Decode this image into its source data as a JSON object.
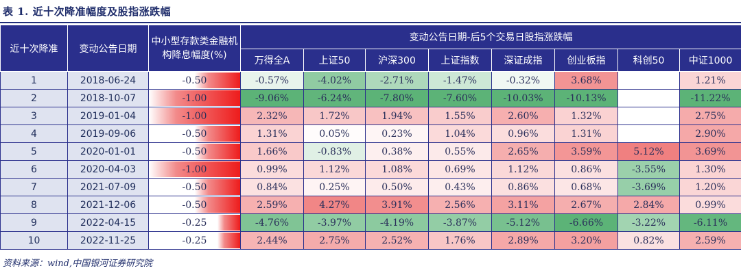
{
  "title": "表 1. 近十次降准幅度及股指涨跌幅",
  "header": {
    "col_index": "近十次降准",
    "col_date": "变动公告日期",
    "col_rate": "中小型存款类金融机构降息幅度(%)",
    "group_label": "变动公告日期-后5个交易日股指涨跌幅",
    "indices": [
      "万得全A",
      "上证50",
      "沪深300",
      "上证指数",
      "深证成指",
      "创业板指",
      "科创50",
      "中证1000"
    ]
  },
  "rows": [
    {
      "n": "1",
      "date": "2018-06-24",
      "rate": "-0.50",
      "rate_level": 0.5,
      "vals": [
        "-0.57%",
        "-4.02%",
        "-2.71%",
        "-1.47%",
        "-0.32%",
        "3.68%",
        "",
        "1.21%"
      ]
    },
    {
      "n": "2",
      "date": "2018-10-07",
      "rate": "-1.00",
      "rate_level": 1.0,
      "vals": [
        "-9.06%",
        "-6.24%",
        "-7.80%",
        "-7.60%",
        "-10.03%",
        "-10.13%",
        "",
        "-11.22%"
      ]
    },
    {
      "n": "3",
      "date": "2019-01-04",
      "rate": "-1.00",
      "rate_level": 1.0,
      "vals": [
        "2.32%",
        "1.72%",
        "1.94%",
        "1.55%",
        "2.60%",
        "1.32%",
        "",
        "2.75%"
      ]
    },
    {
      "n": "4",
      "date": "2019-09-06",
      "rate": "-0.50",
      "rate_level": 0.5,
      "vals": [
        "1.31%",
        "0.05%",
        "0.23%",
        "1.04%",
        "0.96%",
        "1.31%",
        "",
        "2.90%"
      ]
    },
    {
      "n": "5",
      "date": "2020-01-01",
      "rate": "-0.50",
      "rate_level": 0.5,
      "vals": [
        "1.66%",
        "-0.83%",
        "0.38%",
        "0.55%",
        "2.65%",
        "3.59%",
        "5.12%",
        "3.69%"
      ]
    },
    {
      "n": "6",
      "date": "2020-04-03",
      "rate": "-1.00",
      "rate_level": 1.0,
      "vals": [
        "0.99%",
        "1.12%",
        "1.08%",
        "0.69%",
        "1.12%",
        "0.86%",
        "-3.55%",
        "1.30%"
      ]
    },
    {
      "n": "7",
      "date": "2021-07-09",
      "rate": "-0.50",
      "rate_level": 0.5,
      "vals": [
        "0.84%",
        "0.25%",
        "0.50%",
        "0.43%",
        "0.86%",
        "0.68%",
        "-3.69%",
        "1.20%"
      ]
    },
    {
      "n": "8",
      "date": "2021-12-06",
      "rate": "-0.50",
      "rate_level": 0.5,
      "vals": [
        "2.59%",
        "4.27%",
        "3.91%",
        "2.56%",
        "3.11%",
        "2.67%",
        "2.84%",
        "0.99%"
      ]
    },
    {
      "n": "9",
      "date": "2022-04-15",
      "rate": "-0.25",
      "rate_level": 0.25,
      "vals": [
        "-4.76%",
        "-3.97%",
        "-4.19%",
        "-3.87%",
        "-5.12%",
        "-6.66%",
        "-3.22%",
        "-6.11%"
      ]
    },
    {
      "n": "10",
      "date": "2022-11-25",
      "rate": "-0.25",
      "rate_level": 0.25,
      "vals": [
        "2.44%",
        "2.75%",
        "2.52%",
        "1.76%",
        "2.89%",
        "3.20%",
        "0.82%",
        "2.59%"
      ]
    }
  ],
  "colors": {
    "header": "#2a2f8c",
    "pos_max": "#f08080",
    "neg_max": "#5cb377",
    "label_bg": "#dfe3f0"
  },
  "footnote": "资料来源：wind,中国银河证券研究院"
}
